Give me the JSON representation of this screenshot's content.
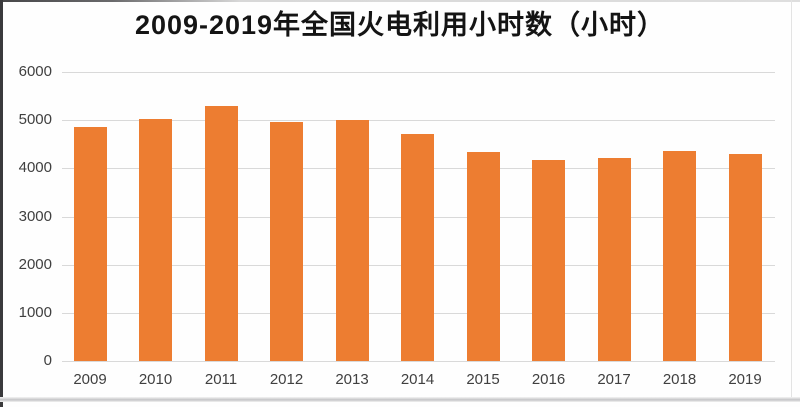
{
  "chart_data": {
    "type": "bar",
    "title": "2009-2019年全国火电利用小时数（小时）",
    "categories": [
      "2009",
      "2010",
      "2011",
      "2012",
      "2013",
      "2014",
      "2015",
      "2016",
      "2017",
      "2018",
      "2019"
    ],
    "values": [
      4865,
      5031,
      5294,
      4965,
      5012,
      4706,
      4329,
      4165,
      4209,
      4361,
      4293
    ],
    "xlabel": "",
    "ylabel": "",
    "ylim": [
      0,
      6000
    ],
    "yticks": [
      0,
      1000,
      2000,
      3000,
      4000,
      5000,
      6000
    ],
    "grid": "horizontal",
    "legend": "none"
  },
  "colors": {
    "bar": "#ED7D31",
    "gridline": "#D9D9D9",
    "axis_label": "#404040",
    "title": "#141414",
    "background": "#FEFEFE"
  }
}
